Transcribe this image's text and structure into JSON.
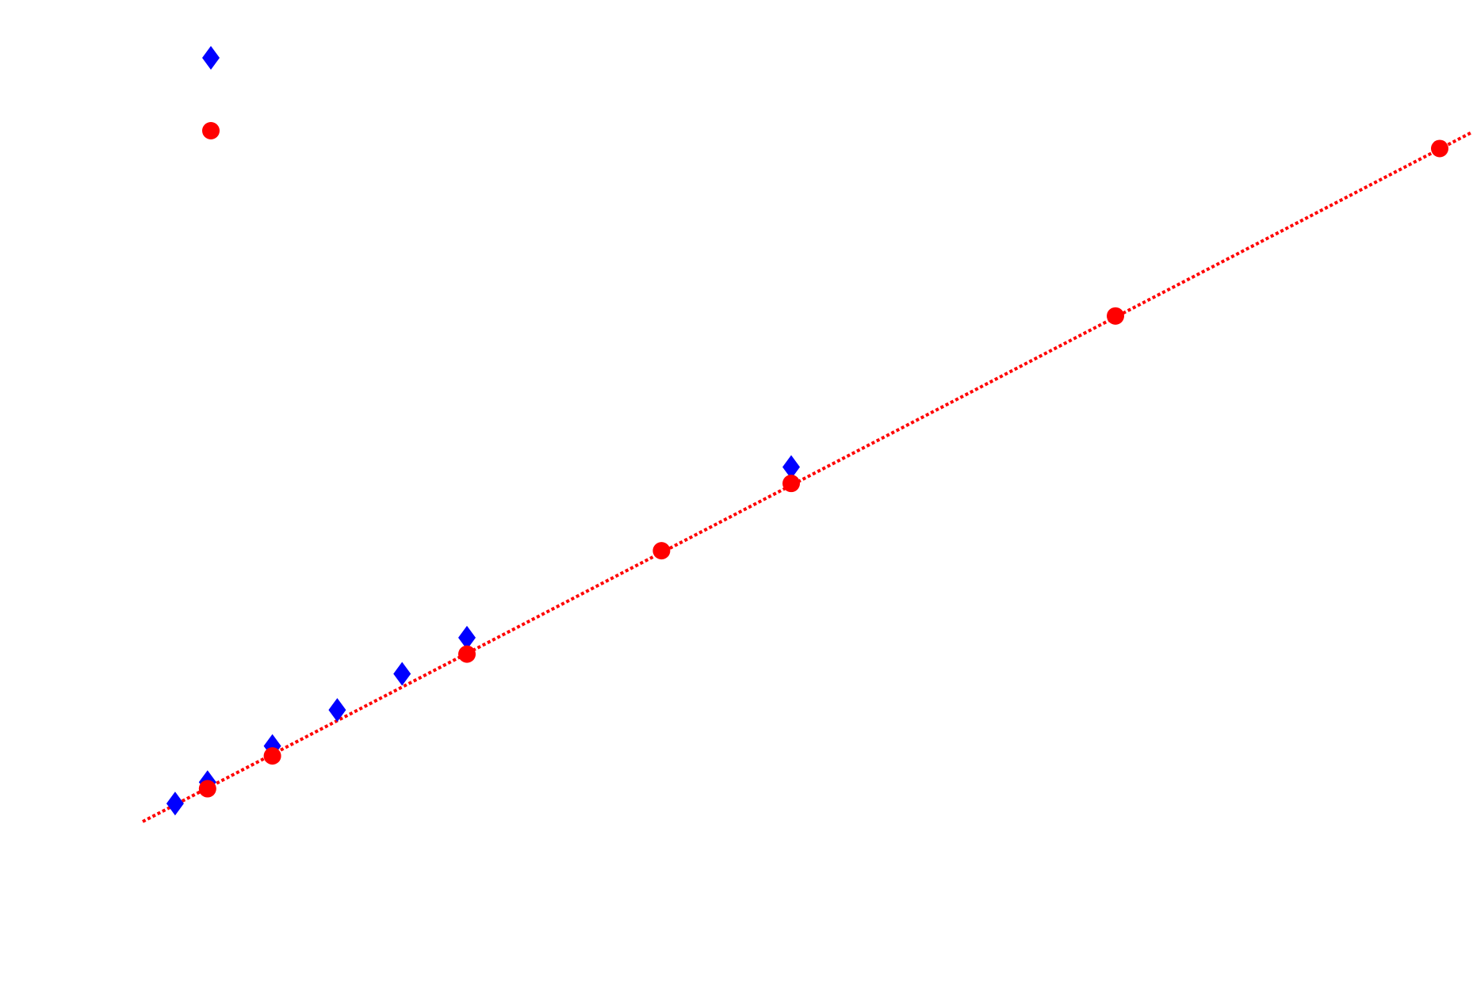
{
  "chart_data": {
    "type": "scatter",
    "title": "",
    "xlabel": "",
    "ylabel": "",
    "grid": false,
    "axes_visible": false,
    "legend_position": "top-left",
    "xlim": [
      0,
      40
    ],
    "ylim": [
      0,
      25
    ],
    "series": [
      {
        "marker": "diamond",
        "color": "#0000ff",
        "style": "markers",
        "points": [
          {
            "x": 1,
            "y": 1.25
          },
          {
            "x": 2,
            "y": 1.9
          },
          {
            "x": 4,
            "y": 3.0
          },
          {
            "x": 6,
            "y": 4.1
          },
          {
            "x": 8,
            "y": 5.2
          },
          {
            "x": 10,
            "y": 6.3
          },
          {
            "x": 20,
            "y": 11.5
          }
        ]
      },
      {
        "marker": "circle",
        "color": "#ff0000",
        "style": "markers",
        "points": [
          {
            "x": 2,
            "y": 1.7
          },
          {
            "x": 4,
            "y": 2.7
          },
          {
            "x": 10,
            "y": 5.8
          },
          {
            "x": 16,
            "y": 8.95
          },
          {
            "x": 20,
            "y": 11.0
          },
          {
            "x": 30,
            "y": 16.1
          },
          {
            "x": 40,
            "y": 21.2
          }
        ]
      },
      {
        "marker": "none",
        "color": "#ff0000",
        "style": "dotted-line",
        "points": [
          {
            "x": 0,
            "y": 0.7
          },
          {
            "x": 41,
            "y": 21.7
          }
        ]
      }
    ],
    "legend": [
      {
        "marker": "diamond",
        "color": "#0000ff",
        "label": ""
      },
      {
        "marker": "circle",
        "color": "#ff0000",
        "label": ""
      }
    ]
  }
}
